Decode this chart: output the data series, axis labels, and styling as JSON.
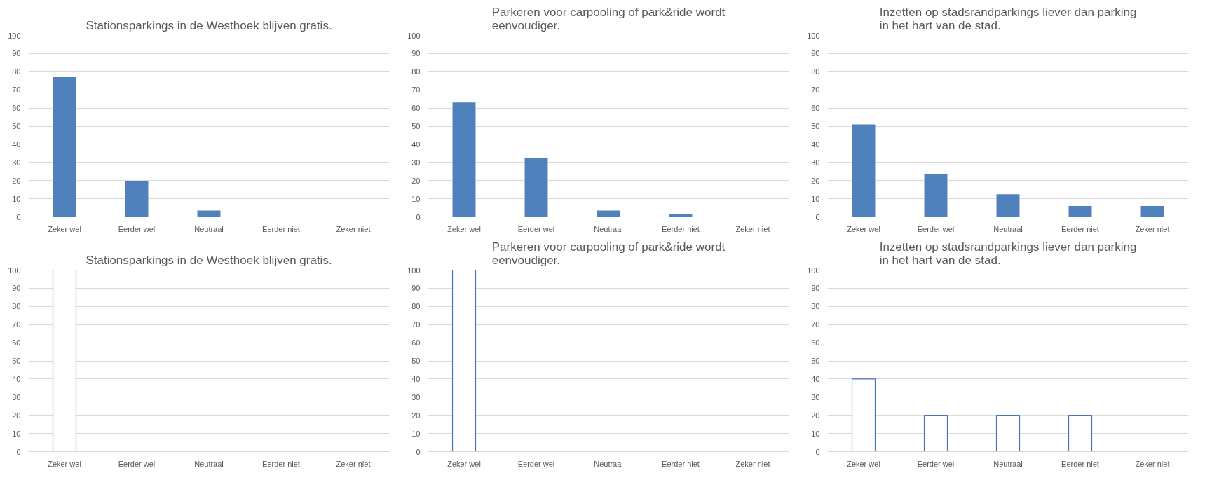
{
  "chart_data": [
    {
      "type": "bar",
      "title": "Stationsparkings in de Westhoek blijven gratis.",
      "categories": [
        "Zeker wel",
        "Eerder wel",
        "Neutraal",
        "Eerder niet",
        "Zeker niet"
      ],
      "values": [
        77,
        19.5,
        3.5,
        0,
        0
      ],
      "color": "#4f81bd",
      "ylim": [
        0,
        100
      ],
      "yticks": [
        0,
        10,
        20,
        30,
        40,
        50,
        60,
        70,
        80,
        90,
        100
      ],
      "grid": "y"
    },
    {
      "type": "bar",
      "title": "Parkeren voor carpooling of park&ride wordt eenvoudiger.",
      "categories": [
        "Zeker wel",
        "Eerder wel",
        "Neutraal",
        "Eerder niet",
        "Zeker niet"
      ],
      "values": [
        63,
        32.5,
        3.5,
        1.5,
        0
      ],
      "color": "#4f81bd",
      "ylim": [
        0,
        100
      ],
      "yticks": [
        0,
        10,
        20,
        30,
        40,
        50,
        60,
        70,
        80,
        90,
        100
      ],
      "grid": "y"
    },
    {
      "type": "bar",
      "title": "Inzetten op stadsrandparkings liever dan parking in het hart van de stad.",
      "categories": [
        "Zeker wel",
        "Eerder wel",
        "Neutraal",
        "Eerder niet",
        "Zeker niet"
      ],
      "values": [
        51,
        23.5,
        12.5,
        6,
        6
      ],
      "color": "#4f81bd",
      "ylim": [
        0,
        100
      ],
      "yticks": [
        0,
        10,
        20,
        30,
        40,
        50,
        60,
        70,
        80,
        90,
        100
      ],
      "grid": "y"
    },
    {
      "type": "bar",
      "title": "Stationsparkings in de Westhoek blijven gratis.",
      "categories": [
        "Zeker wel",
        "Eerder wel",
        "Neutraal",
        "Eerder niet",
        "Zeker niet"
      ],
      "values": [
        100,
        0,
        0,
        0,
        0
      ],
      "color": "#4472c4",
      "ylim": [
        0,
        100
      ],
      "yticks": [
        0,
        10,
        20,
        30,
        40,
        50,
        60,
        70,
        80,
        90,
        100
      ],
      "grid": "y"
    },
    {
      "type": "bar",
      "title": "Parkeren voor carpooling of park&ride wordt eenvoudiger.",
      "categories": [
        "Zeker wel",
        "Eerder wel",
        "Neutraal",
        "Eerder niet",
        "Zeker niet"
      ],
      "values": [
        100,
        0,
        0,
        0,
        0
      ],
      "color": "#4472c4",
      "ylim": [
        0,
        100
      ],
      "yticks": [
        0,
        10,
        20,
        30,
        40,
        50,
        60,
        70,
        80,
        90,
        100
      ],
      "grid": "y"
    },
    {
      "type": "bar",
      "title": "Inzetten op stadsrandparkings liever dan parking in het hart van de stad.",
      "categories": [
        "Zeker wel",
        "Eerder wel",
        "Neutraal",
        "Eerder niet",
        "Zeker niet"
      ],
      "values": [
        40,
        20,
        20,
        20,
        0
      ],
      "color": "#4472c4",
      "ylim": [
        0,
        100
      ],
      "yticks": [
        0,
        10,
        20,
        30,
        40,
        50,
        60,
        70,
        80,
        90,
        100
      ],
      "grid": "y"
    }
  ]
}
